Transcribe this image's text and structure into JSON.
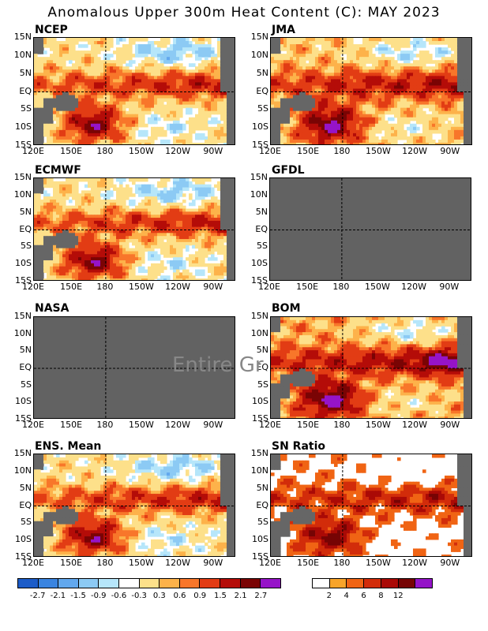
{
  "title": "Anomalous Upper 300m Heat Content (C): MAY 2023",
  "watermark": "Entire Gr",
  "colors": {
    "land": "#666666",
    "no_data": "#626262",
    "anomaly_scale": [
      "#1c5cc8",
      "#3a84e0",
      "#62a8ee",
      "#8ccaf4",
      "#b6e6fa",
      "#ffffff",
      "#fde08a",
      "#fdb24a",
      "#f8762a",
      "#e23c14",
      "#b40c08",
      "#7a0404",
      "#9614c8"
    ],
    "ratio_scale": [
      "#ffffff",
      "#f8a42a",
      "#f06414",
      "#d22c0a",
      "#aa0a06",
      "#760404",
      "#9414c8"
    ]
  },
  "chart_data": {
    "type": "heatmap",
    "xticks": [
      "120E",
      "150E",
      "180",
      "150W",
      "120W",
      "90W"
    ],
    "yticks": [
      "15N",
      "10N",
      "5N",
      "EQ",
      "5S",
      "10S",
      "15S"
    ],
    "panels": [
      {
        "name": "NCEP",
        "status": "data"
      },
      {
        "name": "JMA",
        "status": "data"
      },
      {
        "name": "ECMWF",
        "status": "data"
      },
      {
        "name": "GFDL",
        "status": "missing"
      },
      {
        "name": "NASA",
        "status": "missing"
      },
      {
        "name": "BOM",
        "status": "data"
      },
      {
        "name": "ENS. Mean",
        "status": "data"
      },
      {
        "name": "SN Ratio",
        "status": "data"
      }
    ],
    "anomaly_legend": {
      "labels": [
        "-2.7",
        "-2.1",
        "-1.5",
        "-0.9",
        "-0.6",
        "-0.3",
        "0.3",
        "0.6",
        "0.9",
        "1.5",
        "2.1",
        "2.7"
      ]
    },
    "ratio_legend": {
      "labels": [
        "2",
        "4",
        "6",
        "8",
        "12"
      ]
    }
  }
}
